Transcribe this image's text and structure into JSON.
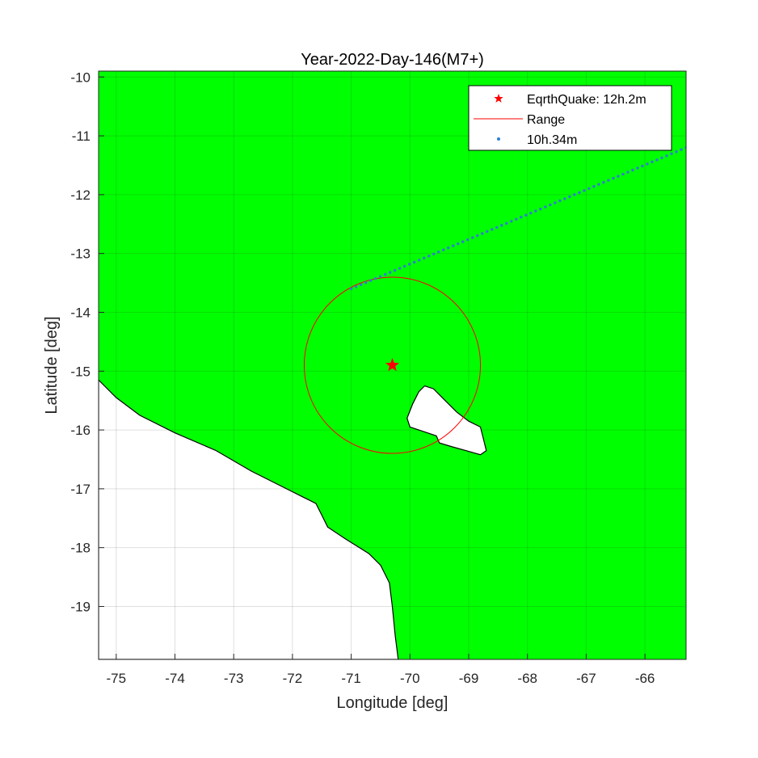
{
  "chart_data": {
    "type": "scatter",
    "title": "Year-2022-Day-146(M7+)",
    "xlabel": "Longitude [deg]",
    "ylabel": "Latitude [deg]",
    "xlim": [
      -75.3,
      -65.3
    ],
    "ylim": [
      -19.9,
      -9.9
    ],
    "xticks": [
      -75,
      -74,
      -73,
      -72,
      -71,
      -70,
      -69,
      -68,
      -67,
      -66
    ],
    "yticks": [
      -10,
      -11,
      -12,
      -13,
      -14,
      -15,
      -16,
      -17,
      -18,
      -19
    ],
    "grid": true,
    "legend_location": "top-right",
    "background_color": "#00ff00",
    "land_color": "#ffffff",
    "earthquake": {
      "label": "EqrthQuake: 12h.2m",
      "lon": -70.3,
      "lat": -14.9,
      "color": "#ff0000",
      "marker": "star"
    },
    "range": {
      "label": "Range",
      "center_lon": -70.3,
      "center_lat": -14.9,
      "radius_deg": 1.5,
      "color": "#ff0000"
    },
    "track": {
      "label": "10h.34m",
      "color": "#2f7fd0",
      "start": {
        "lon": -71.0,
        "lat": -13.6
      },
      "end": {
        "lon": -65.3,
        "lat": -11.2
      },
      "n_points": 70
    },
    "coastline": [
      [
        -75.3,
        -15.15
      ],
      [
        -75.0,
        -15.45
      ],
      [
        -74.6,
        -15.75
      ],
      [
        -74.0,
        -16.05
      ],
      [
        -73.3,
        -16.35
      ],
      [
        -72.7,
        -16.7
      ],
      [
        -72.1,
        -17.0
      ],
      [
        -71.8,
        -17.15
      ],
      [
        -71.6,
        -17.25
      ],
      [
        -71.5,
        -17.45
      ],
      [
        -71.4,
        -17.65
      ],
      [
        -71.1,
        -17.85
      ],
      [
        -70.7,
        -18.1
      ],
      [
        -70.5,
        -18.3
      ],
      [
        -70.35,
        -18.6
      ],
      [
        -70.3,
        -19.0
      ],
      [
        -70.25,
        -19.5
      ],
      [
        -70.2,
        -19.9
      ]
    ],
    "lake": [
      [
        -69.85,
        -15.35
      ],
      [
        -69.75,
        -15.25
      ],
      [
        -69.6,
        -15.3
      ],
      [
        -69.4,
        -15.5
      ],
      [
        -69.2,
        -15.7
      ],
      [
        -69.0,
        -15.85
      ],
      [
        -68.8,
        -15.95
      ],
      [
        -68.75,
        -16.15
      ],
      [
        -68.7,
        -16.35
      ],
      [
        -68.8,
        -16.42
      ],
      [
        -69.05,
        -16.35
      ],
      [
        -69.3,
        -16.28
      ],
      [
        -69.5,
        -16.22
      ],
      [
        -69.55,
        -16.1
      ],
      [
        -69.7,
        -16.05
      ],
      [
        -70.0,
        -15.95
      ],
      [
        -70.05,
        -15.8
      ],
      [
        -69.95,
        -15.55
      ]
    ]
  }
}
